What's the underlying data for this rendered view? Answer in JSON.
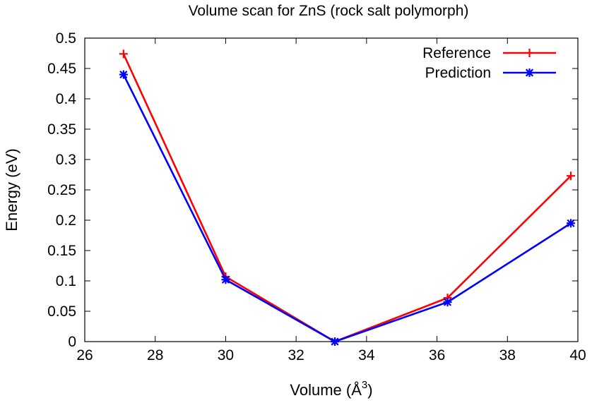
{
  "chart_data": {
    "type": "line",
    "title": "Volume scan for ZnS (rock salt polymorph)",
    "xlabel": "Volume (Å",
    "xlabel_sup": "3",
    "xlabel_close": ")",
    "ylabel": "Energy (eV)",
    "xlim": [
      26,
      40
    ],
    "ylim": [
      0,
      0.5
    ],
    "x_ticks": [
      26,
      28,
      30,
      32,
      34,
      36,
      38,
      40
    ],
    "y_ticks": [
      0,
      0.05,
      0.1,
      0.15,
      0.2,
      0.25,
      0.3,
      0.35,
      0.4,
      0.45,
      0.5
    ],
    "grid": false,
    "legend_position": "top-right",
    "series": [
      {
        "name": "Reference",
        "color": "#ff0000",
        "marker": "plus",
        "x": [
          27.1,
          30.0,
          33.1,
          36.3,
          39.8
        ],
        "y": [
          0.474,
          0.107,
          0.0,
          0.072,
          0.273
        ]
      },
      {
        "name": "Prediction",
        "color": "#0000ff",
        "marker": "asterisk",
        "x": [
          27.1,
          30.0,
          33.1,
          36.3,
          39.8
        ],
        "y": [
          0.44,
          0.102,
          0.0,
          0.065,
          0.195
        ]
      }
    ]
  }
}
